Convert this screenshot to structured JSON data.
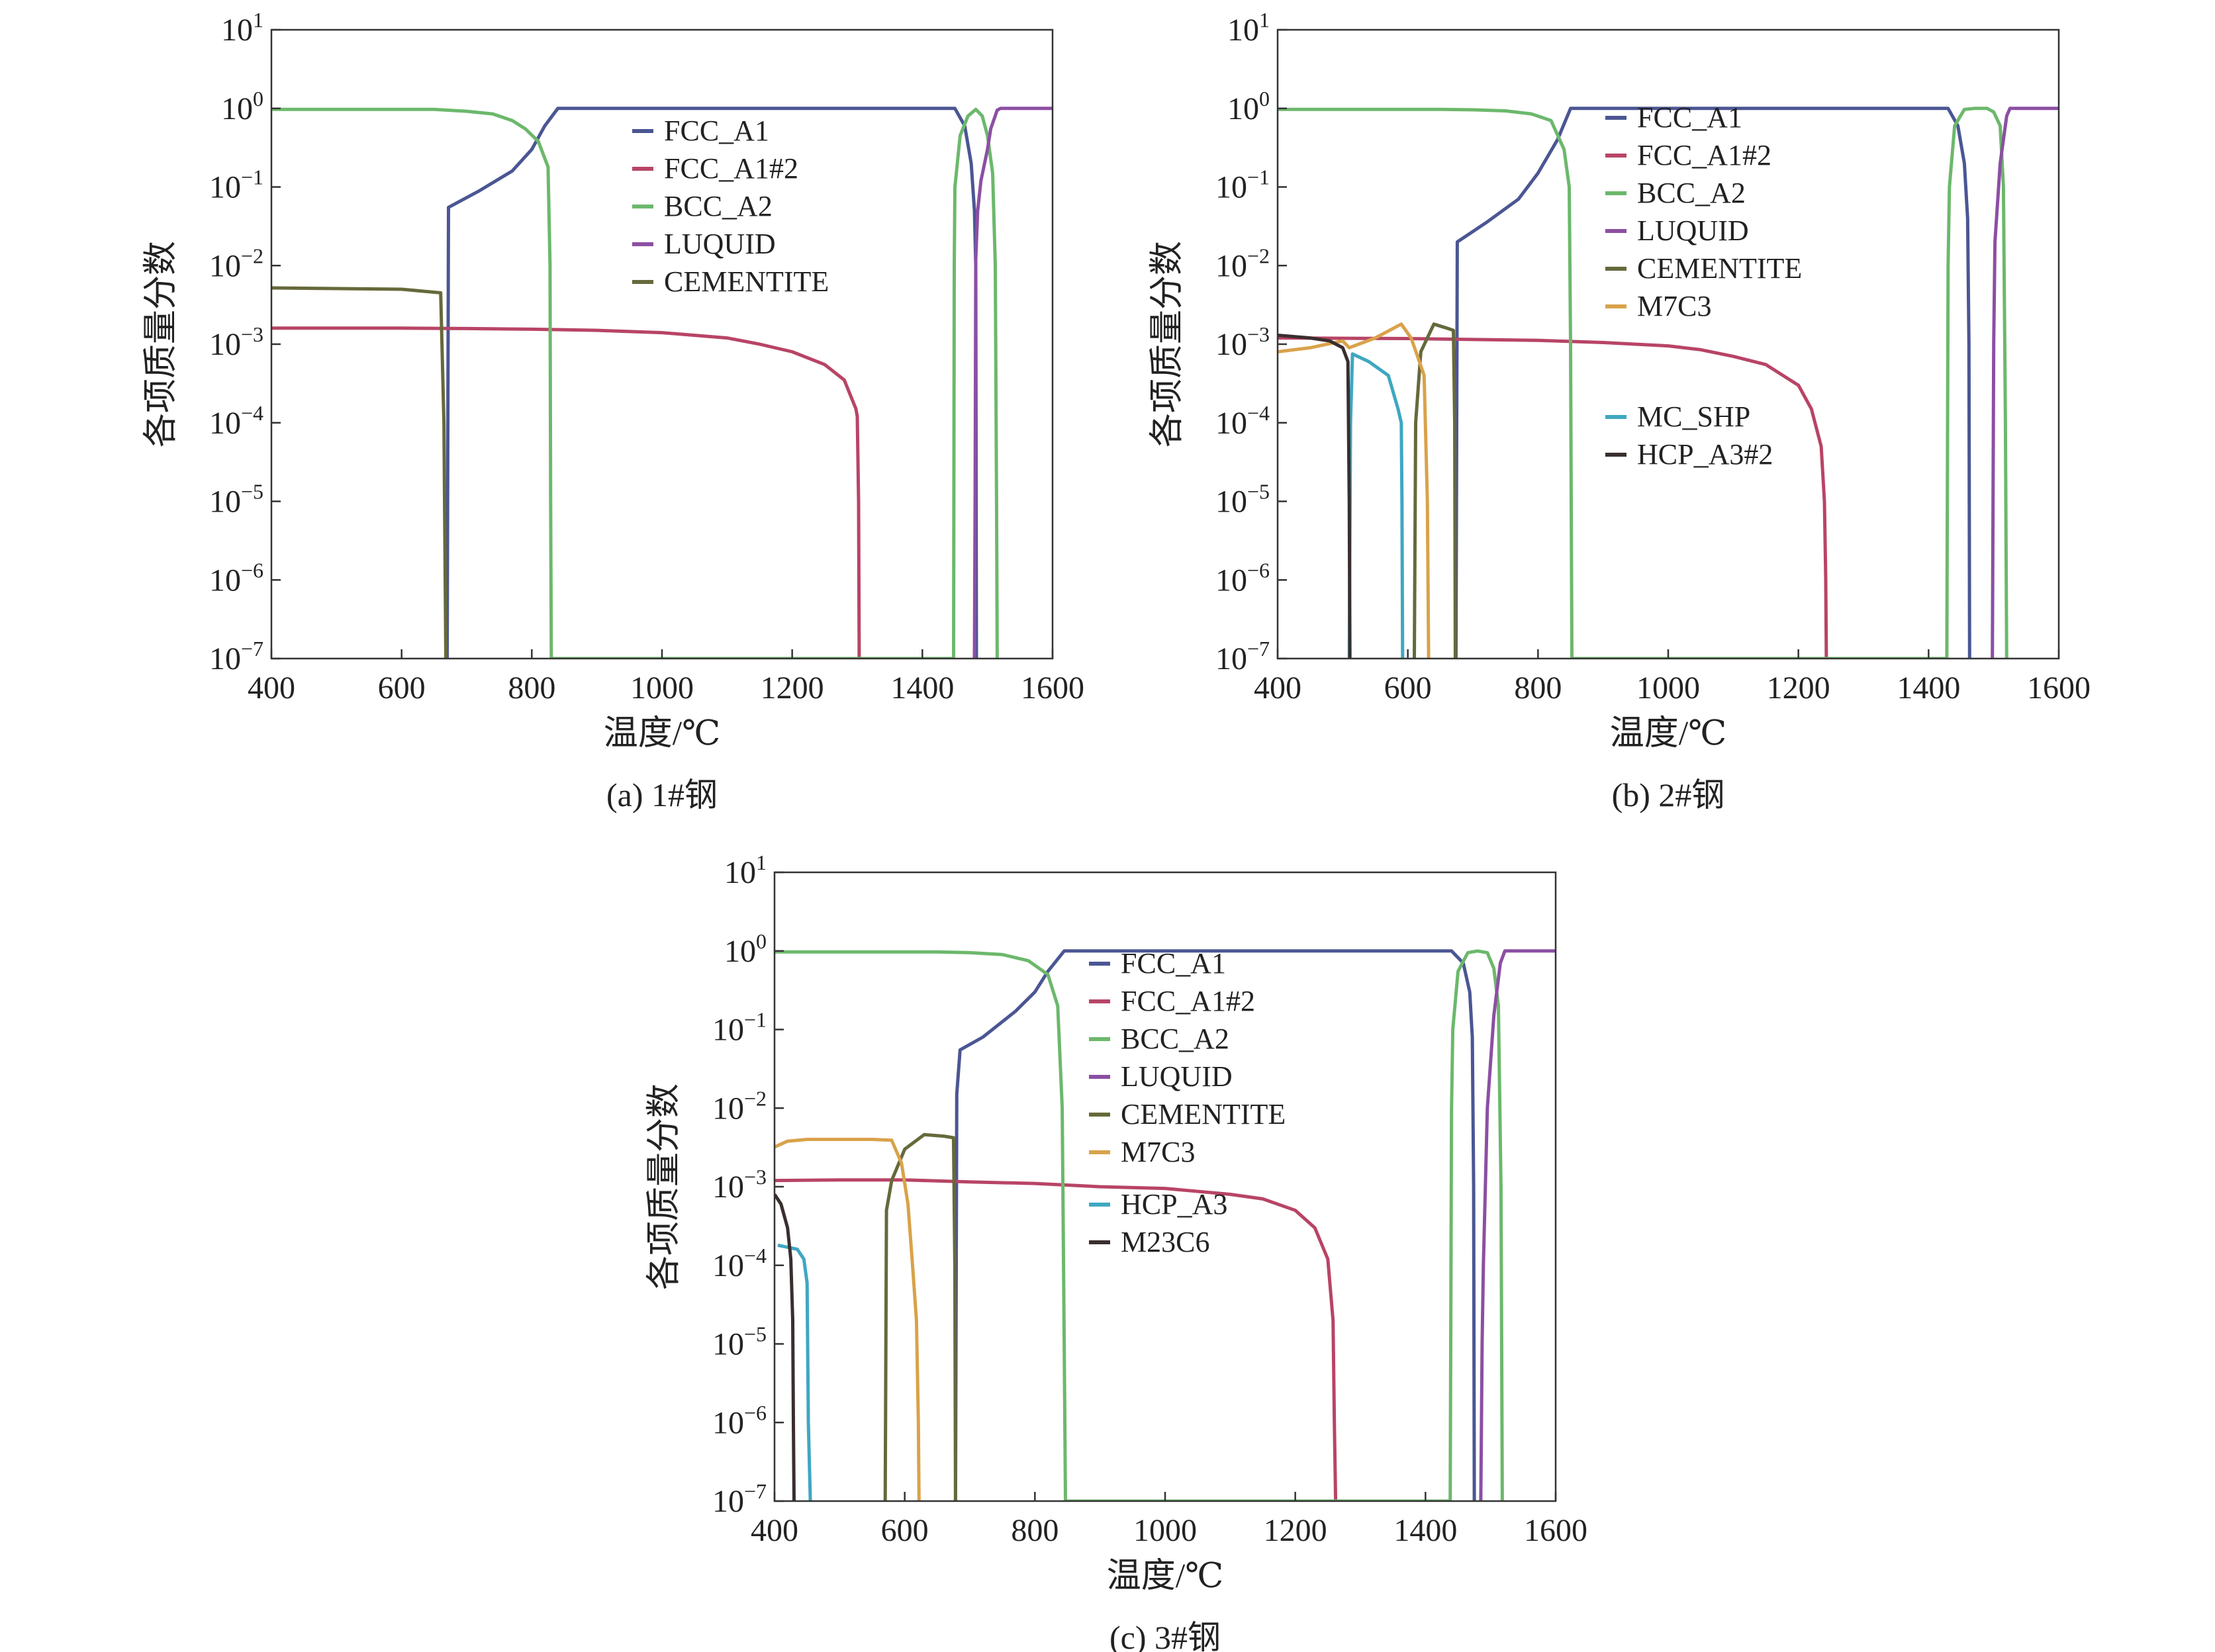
{
  "chart_data": [
    {
      "type": "line",
      "caption": "(a) 1#钢",
      "xlabel": "温度/℃",
      "ylabel": "各项质量分数",
      "xlim": [
        400,
        1600
      ],
      "ylim_log10": [
        -7,
        1
      ],
      "yscale": "log",
      "x_ticks": [
        "400",
        "600",
        "800",
        "1000",
        "1200",
        "1400",
        "1600"
      ],
      "y_tick_exponents": [
        "1",
        "0",
        "−1",
        "−2",
        "−3",
        "−4",
        "−5",
        "−6",
        "−7"
      ],
      "legend_placement": "upper-center",
      "series": [
        {
          "name": "FCC_A1",
          "color": "#4b5693",
          "x": [
            670,
            672,
            720,
            770,
            800,
            820,
            840,
            1450,
            1465,
            1475,
            1480,
            1482,
            1483
          ],
          "y": [
            1e-07,
            0.055,
            0.09,
            0.16,
            0.3,
            0.6,
            1,
            1,
            0.6,
            0.2,
            0.05,
            0.01,
            1e-07
          ]
        },
        {
          "name": "FCC_A1#2",
          "color": "#b84466",
          "x": [
            400,
            600,
            700,
            800,
            900,
            1000,
            1100,
            1150,
            1200,
            1250,
            1280,
            1298,
            1300,
            1302,
            1303
          ],
          "y": [
            0.0016,
            0.0016,
            0.00158,
            0.00155,
            0.0015,
            0.0014,
            0.0012,
            0.001,
            0.0008,
            0.00055,
            0.00035,
            0.00015,
            0.00012,
            1e-05,
            1e-07
          ]
        },
        {
          "name": "BCC_A2",
          "color": "#6cb86c",
          "x": [
            400,
            650,
            700,
            740,
            770,
            790,
            810,
            825,
            828,
            829,
            830,
            1448,
            1449,
            1450,
            1458,
            1470,
            1482,
            1492,
            1500,
            1508,
            1512,
            1514,
            1515
          ],
          "y": [
            0.97,
            0.97,
            0.92,
            0.85,
            0.7,
            0.55,
            0.38,
            0.18,
            0.01,
            1e-05,
            1e-07,
            1e-07,
            0.01,
            0.1,
            0.45,
            0.8,
            0.97,
            0.8,
            0.45,
            0.15,
            0.01,
            1e-05,
            1e-07
          ]
        },
        {
          "name": "LUQUID",
          "color": "#8c4fa3",
          "x": [
            1480,
            1481,
            1482,
            1485,
            1490,
            1500,
            1505,
            1515,
            1520,
            1600
          ],
          "y": [
            1e-07,
            1e-05,
            0.012,
            0.05,
            0.12,
            0.3,
            0.55,
            0.95,
            1,
            1
          ]
        },
        {
          "name": "CEMENTITE",
          "color": "#66693a",
          "x": [
            400,
            500,
            600,
            660,
            665,
            667,
            668
          ],
          "y": [
            0.0052,
            0.0051,
            0.005,
            0.0045,
            0.0001,
            1e-06,
            1e-07
          ]
        }
      ]
    },
    {
      "type": "line",
      "caption": "(b) 2#钢",
      "xlabel": "温度/℃",
      "ylabel": "各项质量分数",
      "xlim": [
        400,
        1600
      ],
      "ylim_log10": [
        -7,
        1
      ],
      "yscale": "log",
      "x_ticks": [
        "400",
        "600",
        "800",
        "1000",
        "1200",
        "1400",
        "1600"
      ],
      "y_tick_exponents": [
        "1",
        "0",
        "−1",
        "−2",
        "−3",
        "−4",
        "−5",
        "−6",
        "−7"
      ],
      "legend_placement": "upper-center",
      "series": [
        {
          "name": "FCC_A1",
          "color": "#4b5693",
          "x": [
            674,
            676,
            720,
            770,
            800,
            830,
            850,
            1430,
            1445,
            1455,
            1460,
            1462,
            1463
          ],
          "y": [
            1e-07,
            0.02,
            0.035,
            0.07,
            0.15,
            0.4,
            1,
            1,
            0.6,
            0.2,
            0.04,
            0.001,
            1e-07
          ]
        },
        {
          "name": "FCC_A1#2",
          "color": "#b84466",
          "x": [
            400,
            600,
            800,
            900,
            1000,
            1050,
            1100,
            1150,
            1200,
            1220,
            1235,
            1240,
            1242,
            1243
          ],
          "y": [
            0.0012,
            0.00118,
            0.00112,
            0.00105,
            0.00095,
            0.00085,
            0.0007,
            0.00055,
            0.0003,
            0.00015,
            5e-05,
            1e-05,
            1e-06,
            1e-07
          ]
        },
        {
          "name": "BCC_A2",
          "color": "#6cb86c",
          "x": [
            400,
            650,
            700,
            750,
            790,
            820,
            840,
            848,
            850,
            852,
            1428,
            1430,
            1432,
            1440,
            1455,
            1470,
            1490,
            1500,
            1510,
            1515,
            1518,
            1520
          ],
          "y": [
            0.97,
            0.97,
            0.96,
            0.93,
            0.85,
            0.7,
            0.3,
            0.1,
            0.001,
            1e-07,
            1e-07,
            0.01,
            0.1,
            0.6,
            0.97,
            1,
            1,
            0.9,
            0.6,
            0.1,
            0.0001,
            1e-07
          ]
        },
        {
          "name": "LUQUID",
          "color": "#8c4fa3",
          "x": [
            1498,
            1500,
            1502,
            1510,
            1520,
            1525,
            1600
          ],
          "y": [
            1e-07,
            0.001,
            0.02,
            0.2,
            0.8,
            1,
            1
          ]
        },
        {
          "name": "CEMENTITE",
          "color": "#66693a",
          "x": [
            610,
            612,
            620,
            640,
            660,
            670,
            672,
            673
          ],
          "y": [
            1e-07,
            0.0001,
            0.0008,
            0.0018,
            0.0016,
            0.0015,
            0.0001,
            1e-07
          ]
        },
        {
          "name": "M7C3",
          "color": "#d9a24a",
          "x": [
            400,
            450,
            500,
            510,
            550,
            590,
            605,
            615,
            625,
            630,
            632
          ],
          "y": [
            0.0008,
            0.0009,
            0.0011,
            0.0009,
            0.0012,
            0.0018,
            0.0012,
            0.0007,
            0.0004,
            1e-05,
            1e-07
          ]
        },
        {
          "name": "MC_SHP",
          "color": "#3fa7c2",
          "x": [
            510,
            512,
            515,
            540,
            570,
            585,
            590,
            591,
            592
          ],
          "y": [
            1e-07,
            0.0001,
            0.00075,
            0.0006,
            0.0004,
            0.00015,
            0.0001,
            1e-05,
            1e-07
          ]
        },
        {
          "name": "HCP_A3#2",
          "color": "#3a2e2e",
          "x": [
            400,
            450,
            480,
            500,
            508,
            510,
            511
          ],
          "y": [
            0.0013,
            0.0012,
            0.0011,
            0.0009,
            0.0006,
            1e-05,
            1e-07
          ]
        }
      ]
    },
    {
      "type": "line",
      "caption": "(c) 3#钢",
      "xlabel": "温度/℃",
      "ylabel": "各项质量分数",
      "xlim": [
        400,
        1600
      ],
      "ylim_log10": [
        -7,
        1
      ],
      "yscale": "log",
      "x_ticks": [
        "400",
        "600",
        "800",
        "1000",
        "1200",
        "1400",
        "1600"
      ],
      "y_tick_exponents": [
        "1",
        "0",
        "−1",
        "−2",
        "−3",
        "−4",
        "−5",
        "−6",
        "−7"
      ],
      "legend_placement": "upper-center",
      "series": [
        {
          "name": "FCC_A1",
          "color": "#4b5693",
          "x": [
            678,
            680,
            685,
            720,
            770,
            800,
            820,
            845,
            1440,
            1458,
            1468,
            1472,
            1474,
            1475
          ],
          "y": [
            1e-07,
            0.015,
            0.055,
            0.08,
            0.17,
            0.3,
            0.55,
            1,
            1,
            0.7,
            0.3,
            0.08,
            0.001,
            1e-07
          ]
        },
        {
          "name": "FCC_A1#2",
          "color": "#b84466",
          "x": [
            400,
            500,
            600,
            700,
            800,
            900,
            1000,
            1100,
            1150,
            1200,
            1230,
            1250,
            1258,
            1260,
            1262
          ],
          "y": [
            0.0012,
            0.00122,
            0.00122,
            0.00115,
            0.0011,
            0.001,
            0.00095,
            0.0008,
            0.0007,
            0.0005,
            0.0003,
            0.00012,
            2e-05,
            1e-06,
            1e-07
          ]
        },
        {
          "name": "BCC_A2",
          "color": "#6cb86c",
          "x": [
            400,
            650,
            700,
            750,
            790,
            820,
            835,
            842,
            845,
            847,
            1438,
            1440,
            1442,
            1450,
            1465,
            1480,
            1495,
            1505,
            1512,
            1516,
            1518
          ],
          "y": [
            0.97,
            0.97,
            0.95,
            0.9,
            0.75,
            0.5,
            0.2,
            0.01,
            1e-05,
            1e-07,
            1e-07,
            0.01,
            0.1,
            0.55,
            0.95,
            1,
            0.95,
            0.6,
            0.2,
            0.001,
            1e-07
          ]
        },
        {
          "name": "LUQUID",
          "color": "#8c4fa3",
          "x": [
            1485,
            1487,
            1489,
            1495,
            1505,
            1515,
            1522,
            1600
          ],
          "y": [
            1e-07,
            1e-05,
            0.0001,
            0.01,
            0.15,
            0.7,
            1,
            1
          ]
        },
        {
          "name": "CEMENTITE",
          "color": "#66693a",
          "x": [
            570,
            572,
            580,
            600,
            630,
            660,
            675,
            677,
            678
          ],
          "y": [
            1e-07,
            0.0005,
            0.0012,
            0.003,
            0.0046,
            0.0044,
            0.0042,
            0.0001,
            1e-07
          ]
        },
        {
          "name": "M7C3",
          "color": "#d9a24a",
          "x": [
            400,
            420,
            450,
            500,
            550,
            580,
            595,
            605,
            612,
            618,
            621,
            622
          ],
          "y": [
            0.0032,
            0.0038,
            0.004,
            0.004,
            0.004,
            0.0039,
            0.002,
            0.0006,
            0.0001,
            2e-05,
            1e-06,
            1e-07
          ]
        },
        {
          "name": "HCP_A3",
          "color": "#3fa7c2",
          "x": [
            405,
            420,
            435,
            445,
            450,
            452,
            455
          ],
          "y": [
            0.00018,
            0.00017,
            0.00016,
            0.00012,
            6e-05,
            1e-06,
            1e-07
          ]
        },
        {
          "name": "M23C6",
          "color": "#3a2e2e",
          "x": [
            400,
            410,
            420,
            425,
            428,
            429,
            430
          ],
          "y": [
            0.0008,
            0.0006,
            0.0003,
            0.00012,
            2e-05,
            1e-06,
            1e-07
          ]
        }
      ]
    }
  ]
}
